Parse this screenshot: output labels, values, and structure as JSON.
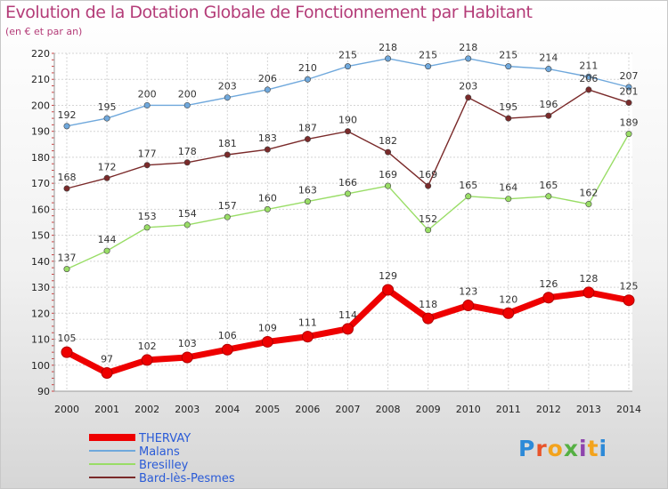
{
  "title": "Evolution de la Dotation Globale de Fonctionnement par Habitant",
  "subtitle": "(en € et par an)",
  "logo_text": "Proxiti",
  "colors": {
    "title": "#b43c78",
    "THERVAY": "#ee0000",
    "Malans": "#6fa8dc",
    "Bresilley": "#99dd66",
    "Bard-lès-Pesmes": "#7a2a2a"
  },
  "chart_data": {
    "type": "line",
    "title": "Evolution de la Dotation Globale de Fonctionnement par Habitant",
    "ylabel": "(en € et par an)",
    "xlabel": "",
    "ylim": [
      90,
      220
    ],
    "yticks": [
      90,
      100,
      110,
      120,
      130,
      140,
      150,
      160,
      170,
      180,
      190,
      200,
      210,
      220
    ],
    "x": [
      2000,
      2001,
      2002,
      2003,
      2004,
      2005,
      2006,
      2007,
      2008,
      2009,
      2010,
      2011,
      2012,
      2013,
      2014
    ],
    "grid": true,
    "legend": "bottom-left",
    "series": [
      {
        "name": "THERVAY",
        "values": [
          105,
          97,
          102,
          103,
          106,
          109,
          111,
          114,
          129,
          118,
          123,
          120,
          126,
          128,
          125
        ]
      },
      {
        "name": "Malans",
        "values": [
          192,
          195,
          200,
          200,
          203,
          206,
          210,
          215,
          218,
          215,
          218,
          215,
          214,
          211,
          207
        ]
      },
      {
        "name": "Bresilley",
        "values": [
          137,
          144,
          153,
          154,
          157,
          160,
          163,
          166,
          169,
          152,
          165,
          164,
          165,
          162,
          189
        ]
      },
      {
        "name": "Bard-lès-Pesmes",
        "values": [
          168,
          172,
          177,
          178,
          181,
          183,
          187,
          190,
          182,
          169,
          203,
          195,
          196,
          206,
          201
        ]
      }
    ]
  }
}
